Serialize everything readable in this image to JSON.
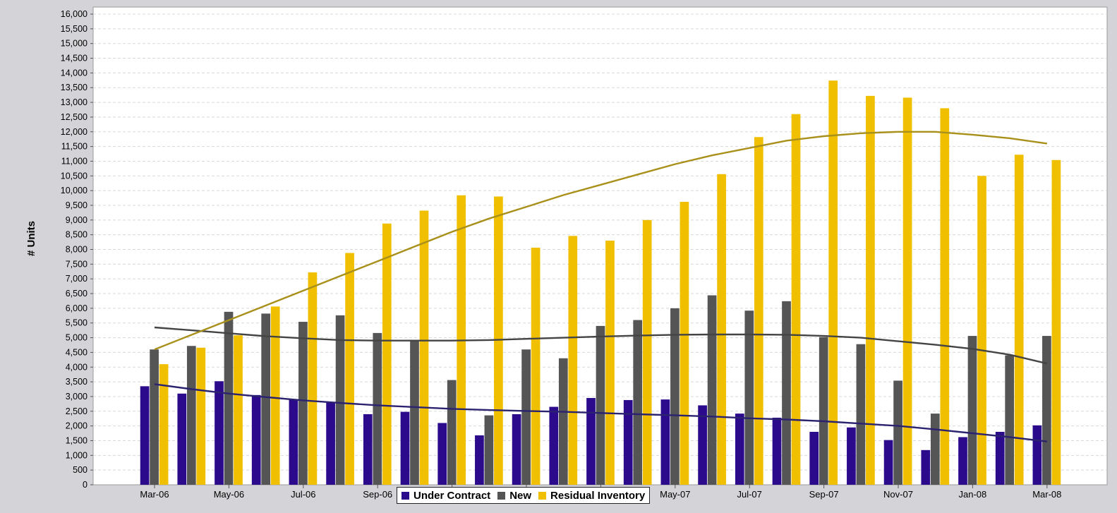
{
  "chart_data": {
    "type": "bar",
    "title": "",
    "xlabel": "",
    "ylabel": "# Units",
    "ylim": [
      0,
      16000
    ],
    "ytick_step": 500,
    "grid": true,
    "legend_position": "bottom-center",
    "categories": [
      "Mar-06",
      "Apr-06",
      "May-06",
      "Jun-06",
      "Jul-06",
      "Aug-06",
      "Sep-06",
      "Oct-06",
      "Nov-06",
      "Dec-06",
      "Jan-07",
      "Feb-07",
      "Mar-07",
      "Apr-07",
      "May-07",
      "Jun-07",
      "Jul-07",
      "Aug-07",
      "Sep-07",
      "Oct-07",
      "Nov-07",
      "Dec-07",
      "Jan-08",
      "Feb-08",
      "Mar-08"
    ],
    "xtick_labels": [
      "Mar-06",
      "May-06",
      "Jul-06",
      "Sep-06",
      "Nov-06",
      "Jan-07",
      "Mar-07",
      "May-07",
      "Jul-07",
      "Sep-07",
      "Nov-07",
      "Jan-08",
      "Mar-08"
    ],
    "series": [
      {
        "name": "Under Contract",
        "color": "#2b0a8c",
        "values": [
          3350,
          3100,
          3520,
          3050,
          2900,
          2800,
          2400,
          2480,
          2100,
          1680,
          2400,
          2650,
          2950,
          2880,
          2900,
          2700,
          2420,
          2280,
          1800,
          1950,
          1520,
          1180,
          1620,
          1800,
          2020
        ],
        "trend": [
          3420,
          3250,
          3100,
          2980,
          2870,
          2780,
          2700,
          2640,
          2580,
          2540,
          2510,
          2480,
          2440,
          2400,
          2360,
          2320,
          2260,
          2220,
          2160,
          2080,
          2000,
          1880,
          1750,
          1620,
          1470
        ]
      },
      {
        "name": "New",
        "color": "#555555",
        "values": [
          4600,
          4720,
          5880,
          5820,
          5540,
          5760,
          5160,
          4920,
          3560,
          2360,
          4600,
          4300,
          5400,
          5600,
          6000,
          6440,
          5920,
          6240,
          5020,
          4780,
          3540,
          2420,
          5060,
          4400,
          5060
        ],
        "trend": [
          5350,
          5250,
          5150,
          5050,
          4980,
          4920,
          4900,
          4900,
          4900,
          4920,
          4960,
          5000,
          5040,
          5070,
          5100,
          5110,
          5110,
          5100,
          5060,
          5000,
          4880,
          4760,
          4620,
          4420,
          4120
        ]
      },
      {
        "name": "Residual Inventory",
        "color": "#f0c000",
        "values": [
          4100,
          4660,
          5080,
          6060,
          7220,
          7880,
          8880,
          9320,
          9840,
          9800,
          8060,
          8460,
          8300,
          9000,
          9620,
          10560,
          11820,
          12600,
          13740,
          13220,
          13160,
          12800,
          10500,
          11220,
          11040
        ],
        "trend": [
          4600,
          5100,
          5600,
          6100,
          6600,
          7100,
          7600,
          8100,
          8600,
          9050,
          9450,
          9850,
          10200,
          10550,
          10900,
          11200,
          11450,
          11700,
          11850,
          11950,
          12000,
          12000,
          11900,
          11780,
          11600
        ]
      }
    ]
  }
}
